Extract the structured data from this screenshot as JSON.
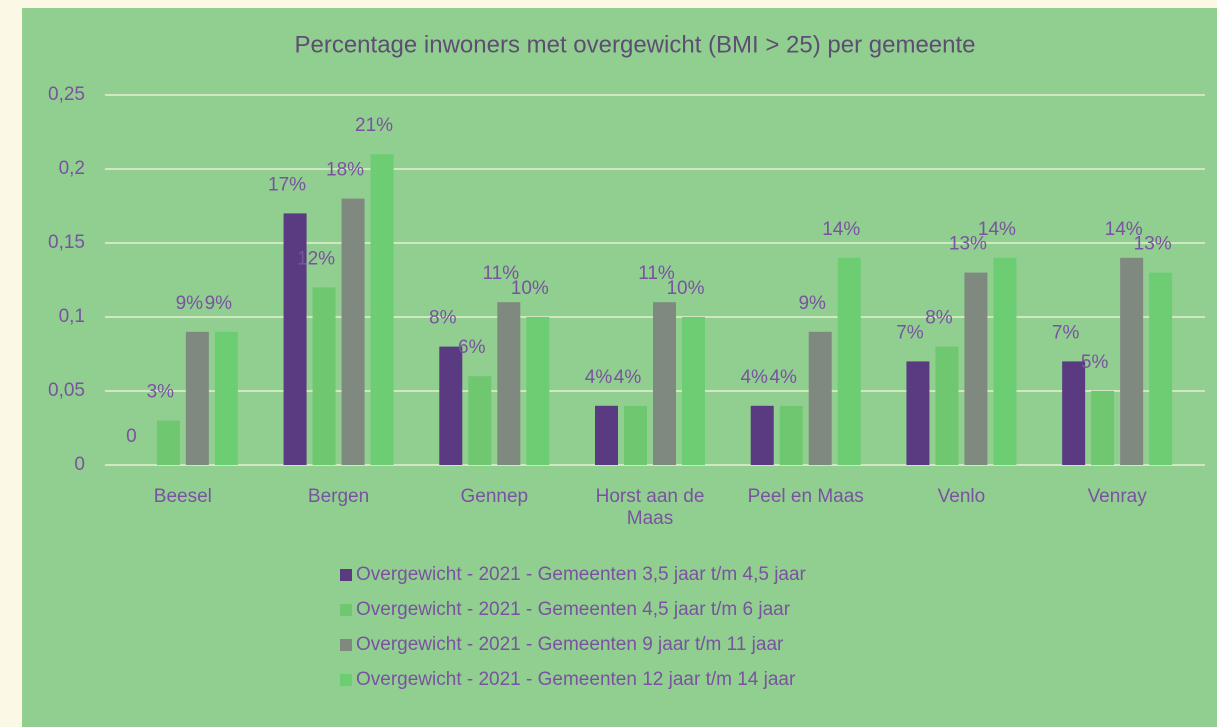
{
  "chart_data": {
    "type": "bar",
    "title": "Percentage inwoners met overgewicht (BMI > 25) per gemeente",
    "categories": [
      "Beesel",
      "Bergen",
      "Gennep",
      "Horst aan de Maas",
      "Peel en Maas",
      "Venlo",
      "Venray"
    ],
    "series": [
      {
        "name": "Overgewicht  - 2021 - Gemeenten 3,5 jaar t/m 4,5 jaar",
        "color": "#5a3a80",
        "values": [
          0,
          0.17,
          0.08,
          0.04,
          0.04,
          0.07,
          0.07
        ],
        "value_labels": [
          "0",
          "17%",
          "8%",
          "4%",
          "4%",
          "7%",
          "7%"
        ]
      },
      {
        "name": "Overgewicht  - 2021 - Gemeenten 4,5 jaar t/m 6 jaar",
        "color": "#6fc76f",
        "values": [
          0.03,
          0.12,
          0.06,
          0.04,
          0.04,
          0.08,
          0.05
        ],
        "value_labels": [
          "3%",
          "12%",
          "6%",
          "4%",
          "4%",
          "8%",
          "5%"
        ]
      },
      {
        "name": "Overgewicht  - 2021 - Gemeenten 9 jaar t/m 11 jaar",
        "color": "#7f897f",
        "values": [
          0.09,
          0.18,
          0.11,
          0.11,
          0.09,
          0.13,
          0.14
        ],
        "value_labels": [
          "9%",
          "18%",
          "11%",
          "11%",
          "9%",
          "13%",
          "14%"
        ]
      },
      {
        "name": "Overgewicht  - 2021 - Gemeenten 12 jaar t/m 14 jaar",
        "color": "#6dcd72",
        "values": [
          0.09,
          0.21,
          0.1,
          0.1,
          0.14,
          0.14,
          0.13
        ],
        "value_labels": [
          "9%",
          "21%",
          "10%",
          "10%",
          "14%",
          "14%",
          "13%"
        ]
      }
    ],
    "ylim": [
      0,
      0.25
    ],
    "yticks": [
      0,
      {
        "value": 0.05,
        "label": "0,05"
      },
      {
        "value": 0.1,
        "label": "0,1"
      },
      {
        "value": 0.15,
        "label": "0,15"
      },
      {
        "value": 0.2,
        "label": "0,2"
      },
      {
        "value": 0.25,
        "label": "0,25"
      }
    ],
    "grid": true
  }
}
